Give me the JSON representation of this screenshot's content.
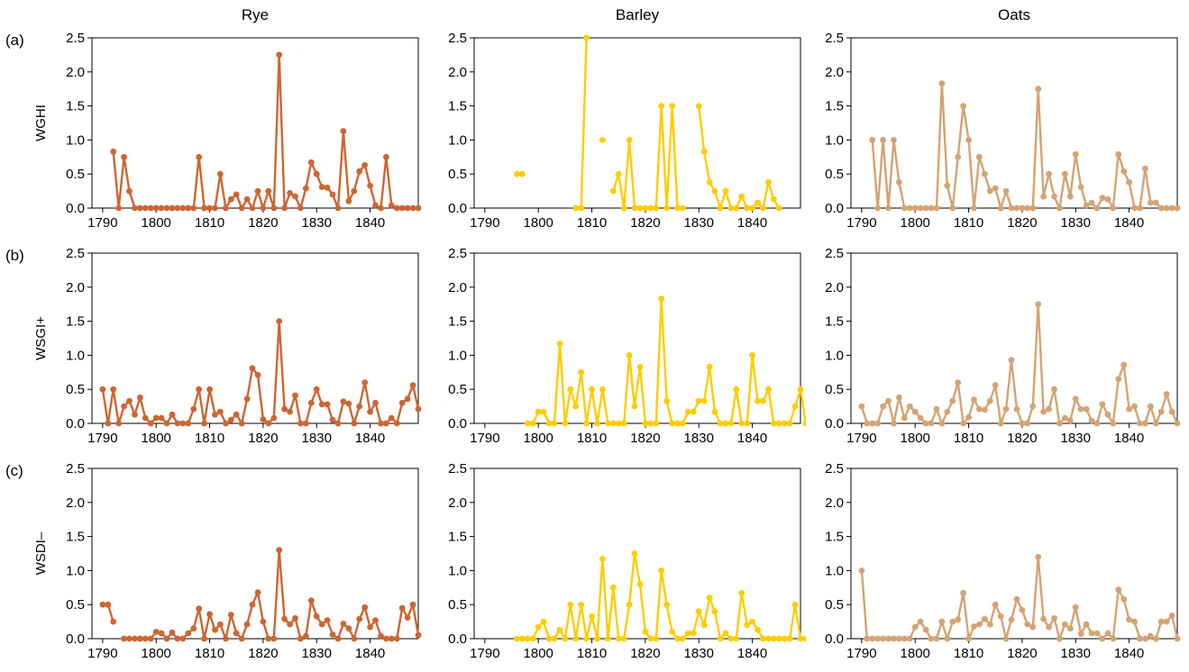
{
  "colors": {
    "Rye": "#CC6633",
    "Barley": "#FFCC00",
    "Oats": "#D4A373"
  },
  "figure": {
    "columns": [
      "Rye",
      "Barley",
      "Oats"
    ],
    "rows": [
      {
        "letter": "(a)",
        "label": "WGHI"
      },
      {
        "letter": "(b)",
        "label": "WSGI+"
      },
      {
        "letter": "(c)",
        "label": "WSDI–"
      }
    ]
  },
  "chart_data": {
    "type": "line",
    "xlim": [
      1788,
      1849
    ],
    "ylim": [
      0,
      2.5
    ],
    "x_ticks": [
      1790,
      1800,
      1810,
      1820,
      1830,
      1840
    ],
    "y_ticks": [
      "0.0",
      "0.5",
      "1.0",
      "1.5",
      "2.0",
      "2.5"
    ],
    "panels": [
      {
        "row": 0,
        "col": 0,
        "start_year": 1790,
        "values": [
          null,
          null,
          0.83,
          0,
          0.75,
          0.25,
          0,
          0,
          0,
          0,
          0,
          0,
          0,
          0,
          0,
          0,
          0,
          0,
          0.75,
          0,
          0,
          0,
          0.5,
          0,
          0.13,
          0.2,
          0,
          0.13,
          0,
          0.25,
          0,
          0.25,
          0,
          2.25,
          0,
          0.22,
          0.17,
          0,
          0.29,
          0.67,
          0.5,
          0.31,
          0.3,
          0.2,
          0,
          1.13,
          0.1,
          0.25,
          0.54,
          0.63,
          0.33,
          0.04,
          0,
          0.75,
          0.04,
          0,
          0,
          0,
          0,
          0
        ]
      },
      {
        "row": 0,
        "col": 1,
        "start_year": 1790,
        "values": [
          null,
          null,
          null,
          null,
          null,
          null,
          0.5,
          0.5,
          null,
          null,
          null,
          null,
          null,
          null,
          null,
          null,
          null,
          0,
          0,
          2.5,
          null,
          null,
          1.0,
          null,
          0.25,
          0.5,
          0,
          1.0,
          0,
          0,
          0,
          0,
          0,
          1.5,
          0,
          1.5,
          0,
          0,
          null,
          null,
          1.5,
          0.83,
          0.38,
          0.25,
          0,
          0.25,
          0,
          0,
          0.17,
          0,
          0,
          0.08,
          0,
          0.38,
          0.13,
          0
        ]
      },
      {
        "row": 0,
        "col": 2,
        "start_year": 1790,
        "values": [
          null,
          null,
          1.0,
          0,
          1.0,
          0,
          1.0,
          0.38,
          0,
          0,
          0,
          0,
          0,
          0,
          0,
          1.83,
          0.33,
          0,
          0.75,
          1.5,
          1.0,
          0,
          0.75,
          0.5,
          0.25,
          0.29,
          0,
          0.25,
          0,
          0,
          0,
          0,
          0,
          1.75,
          0.17,
          0.5,
          0.17,
          0,
          0.5,
          0.17,
          0.79,
          0.31,
          0.04,
          0.08,
          0,
          0.15,
          0.13,
          0,
          0.79,
          0.54,
          0.38,
          0,
          0,
          0.58,
          0.08,
          0.08,
          0,
          0,
          0,
          0
        ]
      },
      {
        "row": 1,
        "col": 0,
        "start_year": 1790,
        "values": [
          0.5,
          0,
          0.5,
          0,
          0.25,
          0.33,
          0.13,
          0.38,
          0.08,
          0,
          0.08,
          0.08,
          0,
          0.13,
          0,
          0,
          0,
          0.21,
          0.5,
          0,
          0.5,
          0.13,
          0.17,
          0,
          0.05,
          0.13,
          0,
          0.36,
          0.81,
          0.71,
          0.06,
          0,
          0.08,
          1.5,
          0.21,
          0.17,
          0.41,
          0,
          0,
          0.3,
          0.5,
          0.28,
          0.28,
          0.05,
          0,
          0.32,
          0.29,
          0,
          0.25,
          0.6,
          0.17,
          0.3,
          0,
          0,
          0.08,
          0,
          0.3,
          0.36,
          0.56,
          0.21
        ]
      },
      {
        "row": 1,
        "col": 1,
        "start_year": 1790,
        "values": [
          null,
          null,
          null,
          null,
          null,
          null,
          null,
          null,
          0,
          0,
          0.17,
          0.17,
          0,
          0,
          1.17,
          0,
          0.5,
          0.25,
          0.75,
          0,
          0.5,
          0,
          0.5,
          0,
          0,
          0,
          0,
          1.0,
          0.25,
          0.83,
          0,
          0,
          0,
          1.83,
          0.33,
          0,
          0,
          0,
          0.17,
          0.17,
          0.33,
          0.33,
          0.83,
          0.17,
          0,
          0,
          0,
          0.5,
          0,
          0,
          1.0,
          0.33,
          0.33,
          0.5,
          0,
          0,
          0,
          0,
          0.25,
          0.5,
          0,
          0.5
        ]
      },
      {
        "row": 1,
        "col": 2,
        "start_year": 1790,
        "values": [
          0.25,
          0,
          0,
          0,
          0.25,
          0.33,
          0,
          0.38,
          0.08,
          0.25,
          0.17,
          0.08,
          0,
          0,
          0.21,
          0,
          0.17,
          0.33,
          0.6,
          0,
          0.09,
          0.35,
          0.21,
          0.2,
          0.33,
          0.56,
          0,
          0.21,
          0.93,
          0.21,
          0,
          0,
          0.25,
          1.75,
          0.17,
          0.21,
          0.5,
          0,
          0.08,
          0.04,
          0.36,
          0.21,
          0.21,
          0.04,
          0,
          0.28,
          0.13,
          0,
          0.65,
          0.86,
          0.21,
          0.25,
          0,
          0,
          0.25,
          0,
          0.17,
          0.43,
          0.17,
          0
        ]
      },
      {
        "row": 2,
        "col": 0,
        "start_year": 1790,
        "values": [
          0.5,
          0.5,
          0.25,
          null,
          0,
          0,
          0,
          0,
          0,
          0,
          0.1,
          0.08,
          0,
          0.09,
          0,
          0,
          0.08,
          0.15,
          0.44,
          0,
          0.36,
          0.13,
          0.21,
          0,
          0.35,
          0.08,
          0,
          0.21,
          0.5,
          0.68,
          0.25,
          0,
          0,
          1.3,
          0.29,
          0.21,
          0.3,
          0,
          0.04,
          0.56,
          0.33,
          0.21,
          0.27,
          0.06,
          0,
          0.22,
          0.15,
          0,
          0.29,
          0.46,
          0.17,
          0.27,
          0.04,
          0,
          0,
          0,
          0.45,
          0.31,
          0.5,
          0.05
        ]
      },
      {
        "row": 2,
        "col": 1,
        "start_year": 1790,
        "values": [
          null,
          null,
          null,
          null,
          null,
          null,
          0,
          0,
          0,
          0,
          0.17,
          0.25,
          0,
          0,
          0.13,
          0,
          0.5,
          0,
          0.5,
          0,
          0.33,
          0,
          1.17,
          0,
          0.75,
          0,
          0,
          0.5,
          1.25,
          0.8,
          0.1,
          0,
          0,
          1.0,
          0.5,
          0.1,
          0,
          0,
          0.08,
          0.08,
          0.4,
          0.2,
          0.6,
          0.4,
          0,
          0.08,
          0,
          0,
          0.67,
          0.2,
          0.25,
          0.13,
          0,
          0,
          0,
          0,
          0,
          0,
          0.5,
          0,
          0
        ]
      },
      {
        "row": 2,
        "col": 2,
        "start_year": 1790,
        "values": [
          1.0,
          0,
          0,
          0,
          0,
          0,
          0,
          0,
          0,
          0,
          0.17,
          0.25,
          0.13,
          0,
          0,
          0.25,
          0,
          0.25,
          0.28,
          0.67,
          0,
          0.18,
          0.21,
          0.29,
          0.21,
          0.5,
          0.33,
          0,
          0.28,
          0.58,
          0.42,
          0.21,
          0.17,
          1.2,
          0.29,
          0.17,
          0.3,
          0,
          0.21,
          0.15,
          0.46,
          0.07,
          0.21,
          0.08,
          0.08,
          0,
          0.08,
          0,
          0.72,
          0.58,
          0.28,
          0.25,
          0,
          0,
          0.04,
          0,
          0.25,
          0.25,
          0.34,
          0
        ]
      }
    ]
  }
}
